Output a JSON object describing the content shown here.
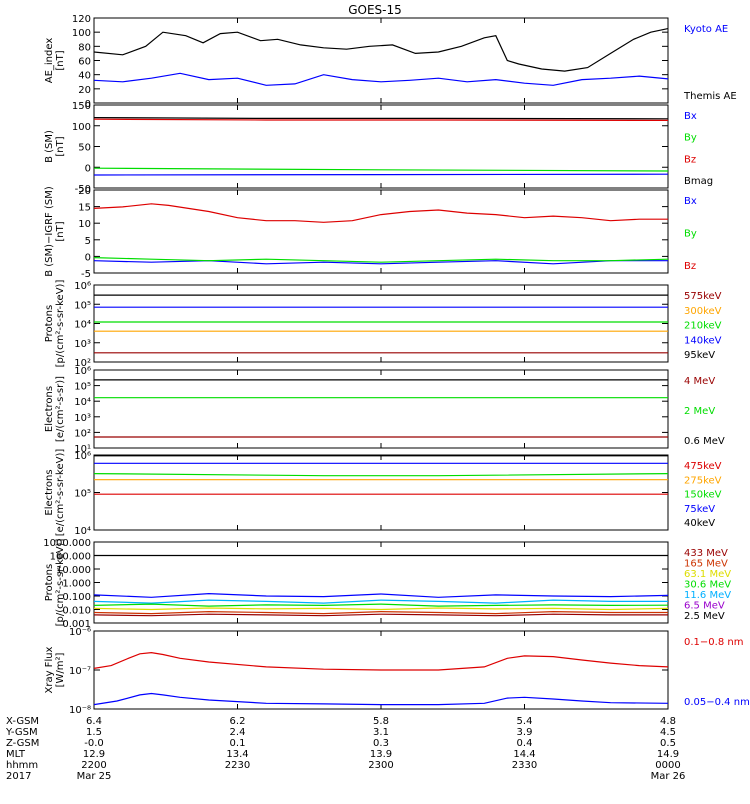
{
  "title": "GOES-15",
  "colors": {
    "black": "#000000",
    "blue": "#0000ff",
    "green": "#00dd00",
    "red": "#dd0000",
    "orange": "#ffa500",
    "cyan": "#00b0ff",
    "purple": "#9900cc",
    "dark_red": "#990000",
    "brown": "#cc3300",
    "yellow": "#dddd00",
    "dark_orange": "#ff8800"
  },
  "chart_data": [
    {
      "type": "line",
      "panel": "ae",
      "ylabel": [
        "AE_index",
        "[nT]"
      ],
      "scale": "linear",
      "ylim": [
        0,
        120
      ],
      "ticks": [
        "0",
        "20",
        "40",
        "60",
        "80",
        "100",
        "120"
      ],
      "legend": [
        "Kyoto AE",
        "Themis AE"
      ],
      "series": [
        {
          "name": "Kyoto AE",
          "color": "#000000",
          "x": [
            0,
            0.05,
            0.09,
            0.12,
            0.16,
            0.19,
            0.22,
            0.25,
            0.29,
            0.32,
            0.36,
            0.4,
            0.44,
            0.48,
            0.52,
            0.56,
            0.6,
            0.64,
            0.68,
            0.7,
            0.72,
            0.74,
            0.78,
            0.82,
            0.86,
            0.9,
            0.94,
            0.97,
            1
          ],
          "values": [
            72,
            68,
            80,
            100,
            95,
            85,
            98,
            100,
            88,
            90,
            82,
            78,
            76,
            80,
            82,
            70,
            72,
            80,
            92,
            95,
            60,
            55,
            48,
            45,
            50,
            70,
            90,
            100,
            105
          ]
        },
        {
          "name": "Themis AE",
          "color": "#0000ff",
          "x": [
            0,
            0.05,
            0.1,
            0.15,
            0.2,
            0.25,
            0.3,
            0.35,
            0.4,
            0.45,
            0.5,
            0.55,
            0.6,
            0.65,
            0.7,
            0.75,
            0.8,
            0.85,
            0.9,
            0.95,
            1
          ],
          "values": [
            32,
            30,
            35,
            42,
            33,
            35,
            25,
            27,
            40,
            33,
            30,
            32,
            35,
            30,
            33,
            28,
            25,
            33,
            35,
            38,
            34
          ]
        }
      ]
    },
    {
      "type": "line",
      "panel": "bsm",
      "ylabel": [
        "B (SM)",
        "[nT]"
      ],
      "scale": "linear",
      "ylim": [
        -60,
        150
      ],
      "ticks": [
        "-50",
        "0",
        "50",
        "100",
        "150"
      ],
      "legend": [
        "Bx",
        "By",
        "Bz",
        "Bmag"
      ],
      "series": [
        {
          "name": "Bx",
          "color": "#0000ff",
          "x": [
            0,
            0.5,
            1
          ],
          "values": [
            -27,
            -26,
            -25
          ]
        },
        {
          "name": "By",
          "color": "#00dd00",
          "x": [
            0,
            0.5,
            1
          ],
          "values": [
            -10,
            -14,
            -17
          ]
        },
        {
          "name": "Bz",
          "color": "#dd0000",
          "x": [
            0,
            0.3,
            0.6,
            1
          ],
          "values": [
            114,
            112,
            112,
            111
          ]
        },
        {
          "name": "Bmag",
          "color": "#000000",
          "x": [
            0,
            0.3,
            0.6,
            1
          ],
          "values": [
            118,
            116,
            116,
            115
          ]
        }
      ]
    },
    {
      "type": "line",
      "panel": "bdiff",
      "ylabel": [
        "B (SM)−IGRF (SM)",
        "[nT]"
      ],
      "scale": "linear",
      "ylim": [
        -7,
        20
      ],
      "ticks": [
        "-5",
        "0",
        "5",
        "10",
        "15",
        "20"
      ],
      "legend": [
        "Bx",
        "By",
        "Bz"
      ],
      "series": [
        {
          "name": "Bx",
          "color": "#0000ff",
          "x": [
            0,
            0.1,
            0.2,
            0.3,
            0.4,
            0.5,
            0.6,
            0.7,
            0.8,
            0.9,
            1
          ],
          "values": [
            -3,
            -3.5,
            -3,
            -4,
            -3.5,
            -4,
            -3.5,
            -3,
            -4,
            -3,
            -3
          ]
        },
        {
          "name": "By",
          "color": "#00dd00",
          "x": [
            0,
            0.1,
            0.2,
            0.3,
            0.4,
            0.5,
            0.6,
            0.7,
            0.8,
            0.9,
            1
          ],
          "values": [
            -2,
            -2.5,
            -3,
            -2.5,
            -3,
            -3.5,
            -3,
            -2.5,
            -3,
            -3,
            -2.5
          ]
        },
        {
          "name": "Bz",
          "color": "#dd0000",
          "x": [
            0,
            0.05,
            0.1,
            0.13,
            0.2,
            0.25,
            0.3,
            0.35,
            0.4,
            0.45,
            0.5,
            0.55,
            0.6,
            0.65,
            0.7,
            0.75,
            0.8,
            0.85,
            0.9,
            0.95,
            1
          ],
          "values": [
            14,
            14.5,
            15.5,
            15,
            13,
            11,
            10,
            10,
            9.5,
            10,
            12,
            13,
            13.5,
            12.5,
            12,
            11,
            11.5,
            11,
            10,
            10.5,
            10.5
          ]
        }
      ]
    },
    {
      "type": "line",
      "panel": "protons_low",
      "ylabel": [
        "Protons",
        "[p/(cm²-s-sr-keV)]"
      ],
      "scale": "log",
      "ylim": [
        100,
        1000000
      ],
      "ticks": [
        "10²",
        "10³",
        "10⁴",
        "10⁵",
        "10⁶"
      ],
      "legend": [
        "575keV",
        "300keV",
        "210keV",
        "140keV",
        "95keV"
      ],
      "series": [
        {
          "name": "95keV",
          "color": "#000000",
          "x": [
            0,
            1
          ],
          "values": [
            300000,
            300000
          ]
        },
        {
          "name": "140keV",
          "color": "#0000ff",
          "x": [
            0,
            1
          ],
          "values": [
            70000,
            70000
          ]
        },
        {
          "name": "210keV",
          "color": "#00dd00",
          "x": [
            0,
            1
          ],
          "values": [
            12000,
            12000
          ]
        },
        {
          "name": "300keV",
          "color": "#ffa500",
          "x": [
            0,
            1
          ],
          "values": [
            4000,
            4000
          ]
        },
        {
          "name": "575keV",
          "color": "#990000",
          "x": [
            0,
            1
          ],
          "values": [
            300,
            300
          ]
        }
      ]
    },
    {
      "type": "line",
      "panel": "electrons_high",
      "ylabel": [
        "Electrons",
        "[e/(cm²-s-sr)]"
      ],
      "scale": "log",
      "ylim": [
        3,
        1000000
      ],
      "ticks": [
        "10¹",
        "10²",
        "10³",
        "10⁴",
        "10⁵",
        "10⁶"
      ],
      "legend": [
        "4 MeV",
        "2 MeV",
        "0.6 MeV"
      ],
      "series": [
        {
          "name": "0.6 MeV",
          "color": "#000000",
          "x": [
            0,
            1
          ],
          "values": [
            200000,
            200000
          ]
        },
        {
          "name": "2 MeV",
          "color": "#00dd00",
          "x": [
            0,
            1
          ],
          "values": [
            11000,
            11000
          ]
        },
        {
          "name": "4 MeV",
          "color": "#990000",
          "x": [
            0,
            1
          ],
          "values": [
            18,
            18
          ]
        }
      ]
    },
    {
      "type": "line",
      "panel": "electrons_low",
      "ylabel": [
        "Electrons",
        "[e/(cm²-s-sr-keV)]"
      ],
      "scale": "log",
      "ylim": [
        10000,
        1000000
      ],
      "ticks": [
        "10⁴",
        "10⁵",
        "10⁶"
      ],
      "legend": [
        "475keV",
        "275keV",
        "150keV",
        "75keV",
        "40keV"
      ],
      "series": [
        {
          "name": "40keV",
          "color": "#000000",
          "x": [
            0,
            1
          ],
          "values": [
            950000,
            950000
          ]
        },
        {
          "name": "75keV",
          "color": "#0000ff",
          "x": [
            0,
            1
          ],
          "values": [
            600000,
            600000
          ]
        },
        {
          "name": "150keV",
          "color": "#00dd00",
          "x": [
            0,
            0.4,
            0.6,
            1
          ],
          "values": [
            320000,
            280000,
            280000,
            320000
          ]
        },
        {
          "name": "275keV",
          "color": "#ffa500",
          "x": [
            0,
            1
          ],
          "values": [
            220000,
            220000
          ]
        },
        {
          "name": "475keV",
          "color": "#dd0000",
          "x": [
            0,
            1
          ],
          "values": [
            90000,
            90000
          ]
        }
      ]
    },
    {
      "type": "line",
      "panel": "protons_high",
      "ylabel": [
        "Protons",
        "[p/(cm²-s-sr-keV)]"
      ],
      "scale": "log",
      "ylim": [
        0.001,
        1000
      ],
      "ticks": [
        "0.001",
        "0.010",
        "0.100",
        "1.000",
        "10.000",
        "100.000",
        "1000.000"
      ],
      "legend": [
        "433 MeV",
        "165 MeV",
        "63.1 MeV",
        "30.6 MeV",
        "11.6 MeV",
        "6.5 MeV",
        "2.5 MeV"
      ],
      "series": [
        {
          "name": "2.5 MeV",
          "color": "#000000",
          "x": [
            0,
            1
          ],
          "values": [
            100,
            100
          ]
        },
        {
          "name": "6.5 MeV",
          "color": "#0000ff",
          "x": [
            0,
            0.1,
            0.2,
            0.3,
            0.4,
            0.5,
            0.6,
            0.7,
            0.8,
            0.9,
            1
          ],
          "values": [
            0.12,
            0.08,
            0.15,
            0.1,
            0.09,
            0.14,
            0.08,
            0.12,
            0.1,
            0.09,
            0.11
          ]
        },
        {
          "name": "11.6 MeV",
          "color": "#00b0ff",
          "x": [
            0,
            0.1,
            0.2,
            0.3,
            0.4,
            0.5,
            0.6,
            0.7,
            0.8,
            0.9,
            1
          ],
          "values": [
            0.04,
            0.03,
            0.05,
            0.04,
            0.03,
            0.05,
            0.04,
            0.03,
            0.05,
            0.04,
            0.04
          ]
        },
        {
          "name": "30.6 MeV",
          "color": "#00dd00",
          "x": [
            0,
            0.1,
            0.2,
            0.3,
            0.4,
            0.5,
            0.6,
            0.7,
            0.8,
            0.9,
            1
          ],
          "values": [
            0.02,
            0.025,
            0.018,
            0.022,
            0.02,
            0.025,
            0.018,
            0.02,
            0.022,
            0.02,
            0.021
          ]
        },
        {
          "name": "63.1 MeV",
          "color": "#dddd00",
          "x": [
            0,
            0.1,
            0.2,
            0.3,
            0.4,
            0.5,
            0.6,
            0.7,
            0.8,
            0.9,
            1
          ],
          "values": [
            0.012,
            0.01,
            0.013,
            0.011,
            0.012,
            0.01,
            0.013,
            0.011,
            0.012,
            0.01,
            0.012
          ]
        },
        {
          "name": "165 MeV",
          "color": "#cc3300",
          "x": [
            0,
            0.1,
            0.2,
            0.3,
            0.4,
            0.5,
            0.6,
            0.7,
            0.8,
            0.9,
            1
          ],
          "values": [
            0.006,
            0.005,
            0.007,
            0.006,
            0.005,
            0.007,
            0.006,
            0.005,
            0.007,
            0.006,
            0.006
          ]
        },
        {
          "name": "433 MeV",
          "color": "#990000",
          "x": [
            0,
            0.1,
            0.2,
            0.3,
            0.4,
            0.5,
            0.6,
            0.7,
            0.8,
            0.9,
            1
          ],
          "values": [
            0.004,
            0.0035,
            0.0045,
            0.004,
            0.0035,
            0.0045,
            0.004,
            0.0035,
            0.0045,
            0.004,
            0.004
          ]
        }
      ]
    },
    {
      "type": "line",
      "panel": "xray",
      "ylabel": [
        "Xray Flux",
        "[W/m²]"
      ],
      "scale": "log",
      "ylim": [
        1e-08,
        1e-06
      ],
      "ticks": [
        "10⁻⁸",
        "10⁻⁷",
        "10⁻⁶"
      ],
      "legend": [
        "0.1−0.8 nm",
        "0.05−0.4 nm"
      ],
      "series": [
        {
          "name": "0.1−0.8 nm",
          "color": "#dd0000",
          "x": [
            0,
            0.03,
            0.06,
            0.08,
            0.1,
            0.12,
            0.15,
            0.2,
            0.3,
            0.4,
            0.5,
            0.6,
            0.68,
            0.72,
            0.75,
            0.8,
            0.85,
            0.9,
            0.95,
            1
          ],
          "values": [
            1.1e-07,
            1.3e-07,
            2e-07,
            2.6e-07,
            2.8e-07,
            2.5e-07,
            2e-07,
            1.6e-07,
            1.2e-07,
            1.05e-07,
            1e-07,
            1e-07,
            1.2e-07,
            2e-07,
            2.3e-07,
            2.2e-07,
            1.8e-07,
            1.5e-07,
            1.3e-07,
            1.2e-07
          ]
        },
        {
          "name": "0.05−0.4 nm",
          "color": "#0000ff",
          "x": [
            0,
            0.04,
            0.08,
            0.1,
            0.12,
            0.15,
            0.2,
            0.3,
            0.4,
            0.5,
            0.6,
            0.68,
            0.72,
            0.75,
            0.8,
            0.85,
            0.9,
            1
          ],
          "values": [
            1.3e-08,
            1.6e-08,
            2.3e-08,
            2.5e-08,
            2.3e-08,
            2e-08,
            1.7e-08,
            1.4e-08,
            1.35e-08,
            1.3e-08,
            1.3e-08,
            1.4e-08,
            1.9e-08,
            2e-08,
            1.8e-08,
            1.6e-08,
            1.45e-08,
            1.4e-08
          ]
        }
      ]
    }
  ],
  "x_axis": {
    "row_labels": [
      "X-GSM",
      "Y-GSM",
      "Z-GSM",
      "MLT",
      "hhmm",
      "2017"
    ],
    "columns": [
      [
        "6.4",
        "1.5",
        "-0.0",
        "12.9",
        "2200",
        "Mar 25"
      ],
      [
        "6.2",
        "2.4",
        "0.1",
        "13.4",
        "2230",
        ""
      ],
      [
        "5.8",
        "3.1",
        "0.3",
        "13.9",
        "2300",
        ""
      ],
      [
        "5.4",
        "3.9",
        "0.4",
        "14.4",
        "2330",
        ""
      ],
      [
        "4.8",
        "4.5",
        "0.5",
        "14.9",
        "0000",
        "Mar 26"
      ]
    ]
  }
}
